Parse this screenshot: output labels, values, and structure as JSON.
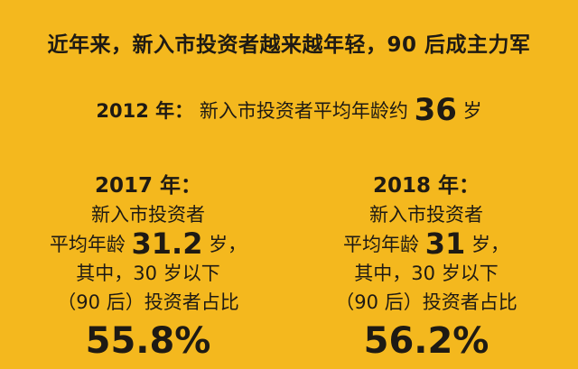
{
  "title": "近年来，新入市投资者越来越年轻，90 后成主力军",
  "y2012": {
    "year": "2012 年：",
    "text": "新入市投资者平均年龄约",
    "age": "36",
    "unit": "岁"
  },
  "columns": [
    {
      "year": "2017 年：",
      "line1": "新入市投资者",
      "age_label": "平均年龄",
      "age": "31.2",
      "unit": "岁，",
      "line3": "其中，30 岁以下",
      "line4": "（90 后）投资者占比",
      "share": "55.8%"
    },
    {
      "year": "2018 年：",
      "line1": "新入市投资者",
      "age_label": "平均年龄",
      "age": "31",
      "unit": "岁，",
      "line3": "其中，30 岁以下",
      "line4": "（90 后）投资者占比",
      "share": "56.2%"
    }
  ]
}
